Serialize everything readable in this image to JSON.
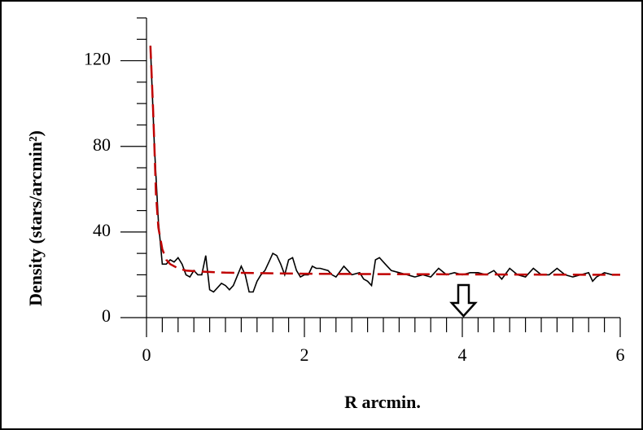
{
  "chart_data": {
    "type": "line",
    "xlabel": "R  arcmin.",
    "ylabel": "Density (stars/arcmin²)",
    "xlim": [
      0,
      6
    ],
    "ylim": [
      0,
      140
    ],
    "xticks": [
      0,
      2,
      4,
      6
    ],
    "yticks": [
      0,
      40,
      80,
      120
    ],
    "series": [
      {
        "color": "#000000",
        "dash": false,
        "x": [
          0.05,
          0.1,
          0.15,
          0.2,
          0.25,
          0.3,
          0.35,
          0.4,
          0.45,
          0.5,
          0.55,
          0.6,
          0.65,
          0.7,
          0.75,
          0.8,
          0.85,
          0.9,
          0.95,
          1.0,
          1.05,
          1.1,
          1.2,
          1.25,
          1.3,
          1.35,
          1.4,
          1.45,
          1.5,
          1.55,
          1.6,
          1.65,
          1.7,
          1.75,
          1.8,
          1.85,
          1.9,
          1.95,
          2.0,
          2.05,
          2.1,
          2.15,
          2.2,
          2.3,
          2.35,
          2.4,
          2.5,
          2.55,
          2.6,
          2.7,
          2.75,
          2.8,
          2.85,
          2.9,
          2.95,
          3.0,
          3.05,
          3.1,
          3.2,
          3.3,
          3.4,
          3.5,
          3.6,
          3.7,
          3.8,
          3.9,
          4.0,
          4.1,
          4.2,
          4.3,
          4.4,
          4.5,
          4.6,
          4.7,
          4.8,
          4.9,
          5.0,
          5.1,
          5.2,
          5.3,
          5.4,
          5.5,
          5.6,
          5.65,
          5.7,
          5.8,
          5.9,
          6.0
        ],
        "values": [
          127,
          80,
          45,
          25,
          25,
          27,
          26,
          28,
          25,
          20,
          19,
          22,
          20,
          20,
          29,
          13,
          12,
          14,
          16,
          15,
          13,
          15,
          24,
          20,
          12,
          12,
          17,
          20,
          22,
          26,
          30,
          29,
          25,
          20,
          27,
          28,
          22,
          19,
          20,
          20,
          24,
          23,
          23,
          22,
          20,
          19,
          24,
          22,
          20,
          21,
          18,
          17,
          15,
          27,
          28,
          26,
          24,
          22,
          21,
          20,
          19,
          20,
          19,
          23,
          20,
          21,
          20,
          21,
          21,
          20,
          22,
          18,
          23,
          20,
          19,
          23,
          20,
          20,
          23,
          20,
          19,
          20,
          21,
          17,
          19,
          21,
          20,
          20
        ]
      },
      {
        "color": "#c00000",
        "dash": true,
        "x": [
          0.05,
          0.08,
          0.1,
          0.12,
          0.15,
          0.2,
          0.25,
          0.3,
          0.4,
          0.5,
          0.7,
          1,
          2,
          3,
          4,
          5,
          6
        ],
        "values": [
          127,
          100,
          80,
          58,
          42,
          32,
          27,
          25,
          23,
          22,
          21.5,
          21,
          20.5,
          20.3,
          20.2,
          20.1,
          20
        ]
      }
    ]
  }
}
